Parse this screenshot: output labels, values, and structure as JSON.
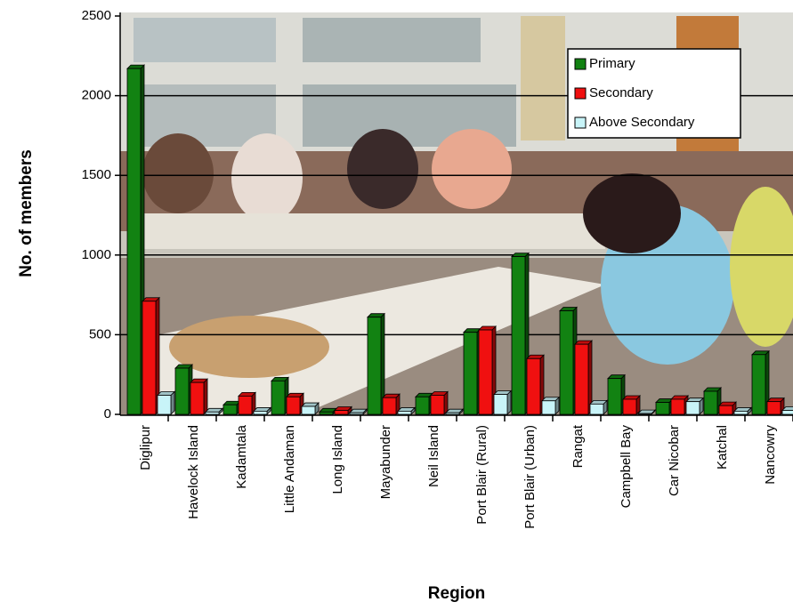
{
  "chart_data": {
    "type": "bar",
    "xlabel": "Region",
    "ylabel": "No. of members",
    "categories": [
      "Diglipur",
      "Havelock Island",
      "Kadamtala",
      "Little Andaman",
      "Long Island",
      "Mayabunder",
      "Neil Island",
      "Port Blair (Rural)",
      "Port Blair (Urban)",
      "Rangat",
      "Campbell Bay",
      "Car Nicobar",
      "Katchal",
      "Nancowry"
    ],
    "series": [
      {
        "name": "Primary",
        "color": "#128212",
        "values": [
          2170,
          290,
          60,
          210,
          15,
          610,
          110,
          515,
          990,
          650,
          225,
          75,
          145,
          375
        ]
      },
      {
        "name": "Secondary",
        "color": "#f01010",
        "values": [
          710,
          200,
          115,
          110,
          25,
          105,
          120,
          530,
          350,
          440,
          95,
          95,
          55,
          80
        ]
      },
      {
        "name": "Above Secondary",
        "color": "#c8f4f8",
        "values": [
          120,
          15,
          20,
          50,
          10,
          20,
          10,
          125,
          85,
          65,
          5,
          80,
          20,
          25
        ]
      }
    ],
    "ylim": [
      0,
      2500
    ],
    "yticks": [
      0,
      500,
      1000,
      1500,
      2000,
      2500
    ],
    "grid": true,
    "legend": "top-right"
  }
}
